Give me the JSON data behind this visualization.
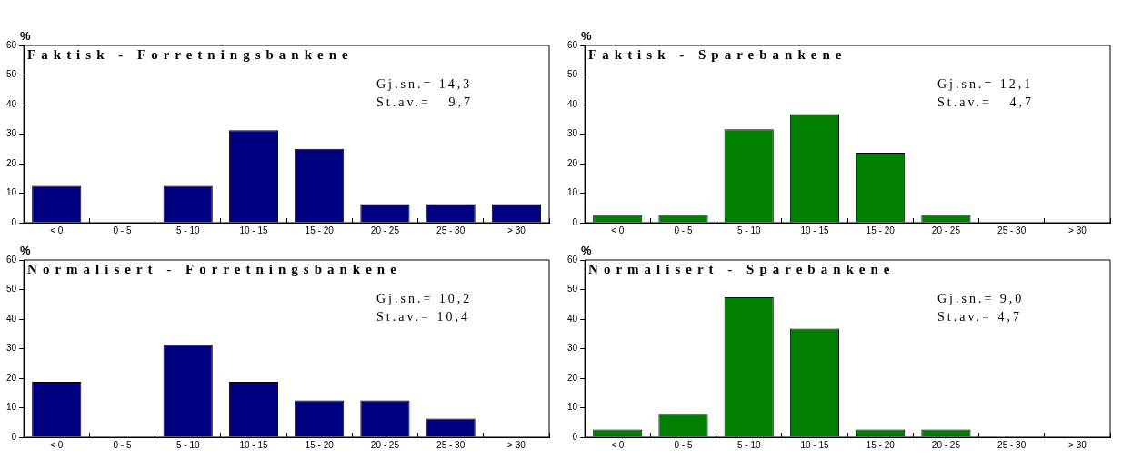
{
  "chart_data": [
    {
      "type": "bar",
      "title": "Faktisk - Forretningsbankene",
      "ylabel": "%",
      "categories": [
        "< 0",
        "0 - 5",
        "5 - 10",
        "10 - 15",
        "15 - 20",
        "20 - 25",
        "25 - 30",
        "> 30"
      ],
      "values": [
        12.5,
        0,
        12.5,
        31.3,
        25,
        6.3,
        6.3,
        6.3
      ],
      "color": "#000080",
      "ylim": [
        0,
        60
      ],
      "yticks": [
        0,
        10,
        20,
        30,
        40,
        50,
        60
      ],
      "grid": false,
      "annotations": [
        "Gj.sn.= 14,3",
        "St.av.=   9,7"
      ]
    },
    {
      "type": "bar",
      "title": "Faktisk - Sparebankene",
      "ylabel": "%",
      "categories": [
        "< 0",
        "0 - 5",
        "5 - 10",
        "10 - 15",
        "15 - 20",
        "20 - 25",
        "25 - 30",
        "> 30"
      ],
      "values": [
        2.6,
        2.6,
        31.6,
        36.8,
        23.7,
        2.6,
        0,
        0
      ],
      "color": "#008000",
      "ylim": [
        0,
        60
      ],
      "yticks": [
        0,
        10,
        20,
        30,
        40,
        50,
        60
      ],
      "grid": false,
      "annotations": [
        "Gj.sn.= 12,1",
        "St.av.=   4,7"
      ]
    },
    {
      "type": "bar",
      "title": "Normalisert - Forretningsbankene",
      "ylabel": "%",
      "categories": [
        "< 0",
        "0 - 5",
        "5 - 10",
        "10 - 15",
        "15 - 20",
        "20 - 25",
        "25 - 30",
        "> 30"
      ],
      "values": [
        18.8,
        0,
        31.3,
        18.8,
        12.5,
        12.5,
        6.3,
        0
      ],
      "color": "#000080",
      "ylim": [
        0,
        60
      ],
      "yticks": [
        0,
        10,
        20,
        30,
        40,
        50,
        60
      ],
      "grid": false,
      "annotations": [
        "Gj.sn.= 10,2",
        "St.av.= 10,4"
      ]
    },
    {
      "type": "bar",
      "title": "Normalisert - Sparebankene",
      "ylabel": "%",
      "categories": [
        "< 0",
        "0 - 5",
        "5 - 10",
        "10 - 15",
        "15 - 20",
        "20 - 25",
        "25 - 30",
        "> 30"
      ],
      "values": [
        2.6,
        7.9,
        47.4,
        36.8,
        2.6,
        2.6,
        0,
        0
      ],
      "color": "#008000",
      "ylim": [
        0,
        60
      ],
      "yticks": [
        0,
        10,
        20,
        30,
        40,
        50,
        60
      ],
      "grid": false,
      "annotations": [
        "Gj.sn.= 9,0",
        "St.av.= 4,7"
      ]
    }
  ]
}
